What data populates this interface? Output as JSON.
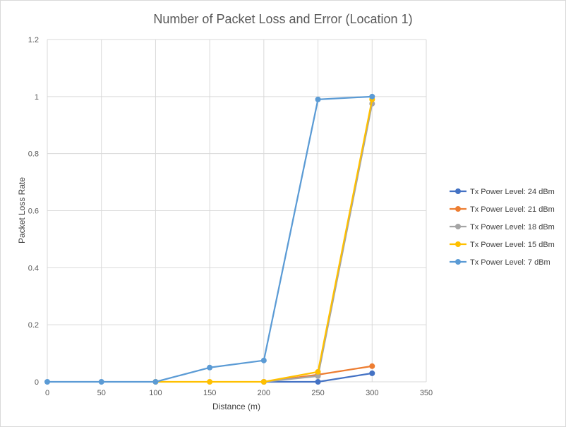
{
  "chart_data": {
    "type": "line",
    "title": "Number of Packet Loss and Error (Location 1)",
    "xlabel": "Distance (m)",
    "ylabel": "Packet Loss Rate",
    "xlim": [
      0,
      350
    ],
    "ylim": [
      0,
      1.2
    ],
    "x_ticks": [
      "0",
      "50",
      "100",
      "150",
      "200",
      "250",
      "300",
      "350"
    ],
    "y_ticks": [
      "0",
      "0.2",
      "0.4",
      "0.6",
      "0.8",
      "1",
      "1.2"
    ],
    "grid": true,
    "legend_position": "right",
    "series": [
      {
        "name": "Tx Power Level: 24 dBm",
        "color": "#4472c4",
        "points": [
          [
            200,
            0
          ],
          [
            250,
            0
          ],
          [
            300,
            0.03
          ]
        ]
      },
      {
        "name": "Tx Power Level: 21 dBm",
        "color": "#ed7d31",
        "points": [
          [
            200,
            0
          ],
          [
            250,
            0.025
          ],
          [
            300,
            0.055
          ]
        ]
      },
      {
        "name": "Tx Power Level: 18 dBm",
        "color": "#a5a5a5",
        "points": [
          [
            200,
            0
          ],
          [
            250,
            0.02
          ],
          [
            300,
            0.975
          ]
        ]
      },
      {
        "name": "Tx Power Level: 15 dBm",
        "color": "#ffc000",
        "points": [
          [
            100,
            0
          ],
          [
            150,
            0
          ],
          [
            200,
            0
          ],
          [
            250,
            0.035
          ],
          [
            300,
            0.99
          ]
        ]
      },
      {
        "name": "Tx Power Level: 7 dBm",
        "color": "#5b9bd5",
        "points": [
          [
            0,
            0
          ],
          [
            50,
            0
          ],
          [
            100,
            0
          ],
          [
            150,
            0.05
          ],
          [
            200,
            0.075
          ],
          [
            250,
            0.99
          ],
          [
            300,
            1.0
          ]
        ]
      }
    ]
  }
}
